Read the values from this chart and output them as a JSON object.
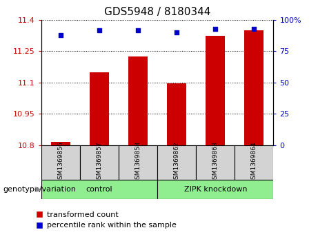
{
  "title": "GDS5948 / 8180344",
  "samples": [
    "GSM1369856",
    "GSM1369857",
    "GSM1369858",
    "GSM1369862",
    "GSM1369863",
    "GSM1369864"
  ],
  "bar_values": [
    10.815,
    11.15,
    11.225,
    11.095,
    11.325,
    11.35
  ],
  "percentile_values": [
    88,
    92,
    92,
    90,
    93,
    93
  ],
  "bar_color": "#cc0000",
  "percentile_color": "#0000cc",
  "ylim_left": [
    10.8,
    11.4
  ],
  "ylim_right": [
    0,
    100
  ],
  "yticks_left": [
    10.8,
    10.95,
    11.1,
    11.25,
    11.4
  ],
  "ytick_labels_left": [
    "10.8",
    "10.95",
    "11.1",
    "11.25",
    "11.4"
  ],
  "yticks_right": [
    0,
    25,
    50,
    75,
    100
  ],
  "ytick_labels_right": [
    "0",
    "25",
    "50",
    "75",
    "100%"
  ],
  "group_label_prefix": "genotype/variation",
  "legend_bar_label": "transformed count",
  "legend_dot_label": "percentile rank within the sample",
  "bar_width": 0.5,
  "sample_box_color": "#d3d3d3",
  "green_box_color": "#90ee90",
  "control_label": "control",
  "zipk_label": "ZIPK knockdown",
  "control_range": [
    0,
    2
  ],
  "zipk_range": [
    3,
    5
  ]
}
